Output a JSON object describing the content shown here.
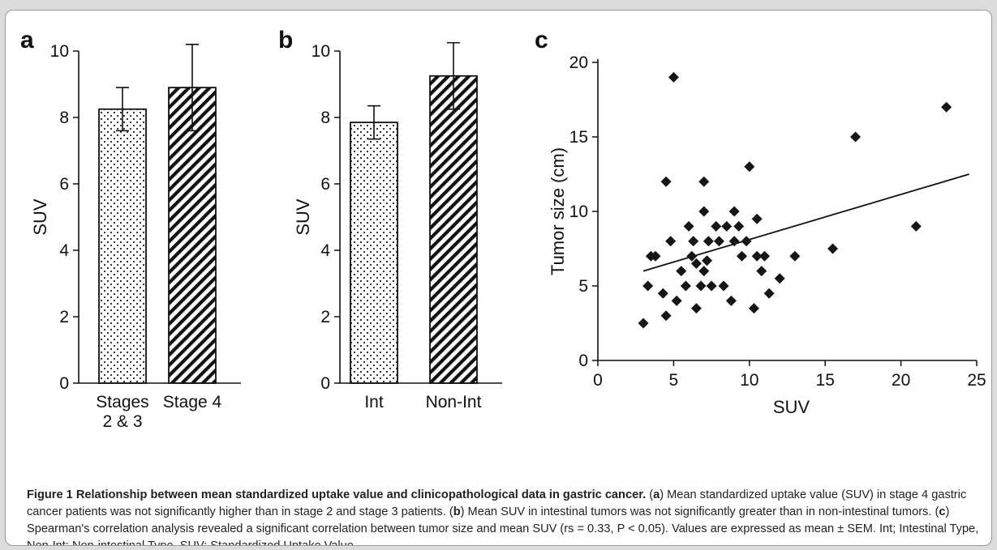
{
  "chart_data": [
    {
      "panel": "a",
      "type": "bar",
      "categories": [
        [
          "Stages",
          "2 & 3"
        ],
        [
          "Stage 4"
        ]
      ],
      "values": [
        8.25,
        8.9
      ],
      "errors": [
        0.65,
        1.3
      ],
      "patterns": [
        "dots",
        "diagonal-stripes"
      ],
      "ylabel": "SUV",
      "ylim": [
        0,
        10
      ],
      "yticks": [
        0,
        2,
        4,
        6,
        8,
        10
      ],
      "grid": false
    },
    {
      "panel": "b",
      "type": "bar",
      "categories": [
        [
          "Int"
        ],
        [
          "Non-Int"
        ]
      ],
      "values": [
        7.85,
        9.25
      ],
      "errors": [
        0.5,
        1.0
      ],
      "patterns": [
        "dots",
        "diagonal-stripes"
      ],
      "ylabel": "SUV",
      "ylim": [
        0,
        10
      ],
      "yticks": [
        0,
        2,
        4,
        6,
        8,
        10
      ],
      "grid": false
    },
    {
      "panel": "c",
      "type": "scatter",
      "xlabel": "SUV",
      "ylabel": "Tumor size (cm)",
      "xlim": [
        0,
        25
      ],
      "ylim": [
        0,
        20
      ],
      "xticks": [
        0,
        5,
        10,
        15,
        20,
        25
      ],
      "yticks": [
        0,
        5,
        10,
        15,
        20
      ],
      "marker": "diamond",
      "grid": false,
      "trendline": {
        "x": [
          3,
          24.5
        ],
        "y": [
          6.0,
          12.5
        ]
      },
      "points": [
        [
          5.0,
          19.0
        ],
        [
          3.5,
          7.0
        ],
        [
          3.8,
          7.0
        ],
        [
          3.3,
          5.0
        ],
        [
          3.0,
          2.5
        ],
        [
          4.5,
          12.0
        ],
        [
          4.8,
          8.0
        ],
        [
          4.3,
          4.5
        ],
        [
          4.5,
          3.0
        ],
        [
          5.2,
          4.0
        ],
        [
          5.5,
          6.0
        ],
        [
          5.8,
          5.0
        ],
        [
          6.0,
          9.0
        ],
        [
          6.2,
          7.0
        ],
        [
          6.5,
          6.5
        ],
        [
          6.8,
          5.0
        ],
        [
          7.0,
          12.0
        ],
        [
          7.0,
          6.0
        ],
        [
          7.2,
          6.7
        ],
        [
          7.5,
          5.0
        ],
        [
          6.5,
          3.5
        ],
        [
          7.0,
          10.0
        ],
        [
          7.3,
          8.0
        ],
        [
          7.8,
          9.0
        ],
        [
          8.0,
          8.0
        ],
        [
          8.5,
          9.0
        ],
        [
          8.3,
          5.0
        ],
        [
          8.8,
          4.0
        ],
        [
          9.0,
          8.0
        ],
        [
          9.0,
          10.0
        ],
        [
          9.3,
          9.0
        ],
        [
          9.5,
          7.0
        ],
        [
          9.8,
          8.0
        ],
        [
          10.0,
          13.0
        ],
        [
          10.3,
          3.5
        ],
        [
          10.5,
          9.5
        ],
        [
          10.5,
          7.0
        ],
        [
          10.8,
          6.0
        ],
        [
          11.0,
          7.0
        ],
        [
          11.3,
          4.5
        ],
        [
          12.0,
          5.5
        ],
        [
          13.0,
          7.0
        ],
        [
          15.5,
          7.5
        ],
        [
          17.0,
          15.0
        ],
        [
          21.0,
          9.0
        ],
        [
          23.0,
          17.0
        ],
        [
          6.3,
          8.0
        ]
      ]
    }
  ],
  "caption": {
    "title": "Figure 1 Relationship between mean standardized uptake value and clinicopathological data in gastric cancer.",
    "a_open": " (",
    "a_letter": "a",
    "a_text": ") Mean standardized uptake value (SUV) in stage 4 gastric cancer patients was not significantly higher than in stage 2 and stage 3 patients. (",
    "b_letter": "b",
    "b_text": ") Mean SUV in intestinal tumors was not significantly greater than in non-intestinal tumors. (",
    "c_letter": "c",
    "c_text": ") Spearman's correlation analysis revealed a significant correlation between tumor size and mean SUV (rs = 0.33, P < 0.05). Values are expressed as mean ± SEM. Int; Intestinal Type, Non-Int; Non-intestinal Type, SUV; Standardized Uptake Value."
  }
}
